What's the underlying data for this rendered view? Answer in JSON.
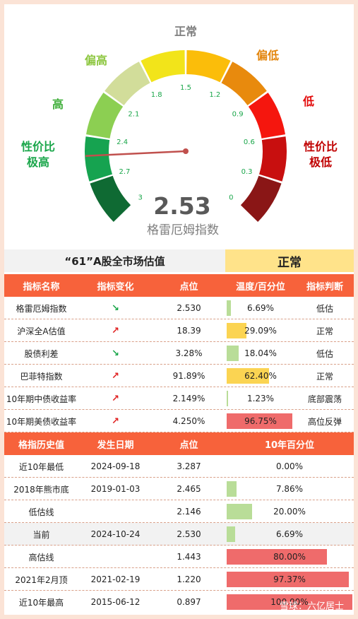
{
  "chart_data": {
    "type": "gauge",
    "value": 2.53,
    "value_label": "2.53",
    "name": "格雷厄姆指数",
    "range": [
      3,
      0
    ],
    "ticks": [
      "3",
      "2.7",
      "2.4",
      "2.1",
      "1.8",
      "1.5",
      "1.2",
      "0.9",
      "0.6",
      "0.3",
      "0"
    ],
    "zone_labels": [
      {
        "text": "性价比\n极高",
        "color": "#1aa64a"
      },
      {
        "text": "高",
        "color": "#3fae3a"
      },
      {
        "text": "偏高",
        "color": "#8cc63e"
      },
      {
        "text": "正常",
        "color": "#7f7f7f"
      },
      {
        "text": "偏低",
        "color": "#e3860e"
      },
      {
        "text": "低",
        "color": "#e30b0b"
      },
      {
        "text": "性价比\n极低",
        "color": "#c00000"
      }
    ],
    "segment_colors": [
      "#0f6a33",
      "#16a350",
      "#8ccf52",
      "#d2dd9a",
      "#f2e41a",
      "#fbbd0a",
      "#e88a0d",
      "#f5160e",
      "#c80f0f",
      "#8a1616"
    ]
  },
  "market": {
    "title": "“61”A股全市场估值",
    "status": "正常"
  },
  "table1": {
    "headers": [
      "指标名称",
      "指标变化",
      "点位",
      "温度/百分位",
      "指标判断"
    ],
    "rows": [
      {
        "name": "格雷厄姆指数",
        "change": "↘",
        "dir": "down",
        "value": "2.530",
        "pct": 6.69,
        "pct_label": "6.69%",
        "judge": "低估",
        "color": "#b9dd98"
      },
      {
        "name": "沪深全A估值",
        "change": "↗",
        "dir": "up",
        "value": "18.39",
        "pct": 29.09,
        "pct_label": "29.09%",
        "judge": "正常",
        "color": "#fbd452"
      },
      {
        "name": "股债利差",
        "change": "↘",
        "dir": "down",
        "value": "3.28%",
        "pct": 18.04,
        "pct_label": "18.04%",
        "judge": "低估",
        "color": "#b9dd98"
      },
      {
        "name": "巴菲特指数",
        "change": "↗",
        "dir": "up",
        "value": "91.89%",
        "pct": 62.4,
        "pct_label": "62.40%",
        "judge": "正常",
        "color": "#fbd452"
      },
      {
        "name": "10年期中债收益率",
        "change": "↗",
        "dir": "up",
        "value": "2.149%",
        "pct": 1.23,
        "pct_label": "1.23%",
        "judge": "底部震荡",
        "color": "#b9dd98"
      },
      {
        "name": "10年期美债收益率",
        "change": "↗",
        "dir": "up",
        "value": "4.250%",
        "pct": 96.75,
        "pct_label": "96.75%",
        "judge": "高位反弹",
        "color": "#ef6b6b"
      }
    ]
  },
  "table2": {
    "headers": [
      "格指历史值",
      "发生日期",
      "点位",
      "10年百分位"
    ],
    "rows": [
      {
        "name": "近10年最低",
        "date": "2024-09-18",
        "value": "3.287",
        "pct": 0,
        "pct_label": "0.00%",
        "color": "#b9dd98"
      },
      {
        "name": "2018年熊市底",
        "date": "2019-01-03",
        "value": "2.465",
        "pct": 7.86,
        "pct_label": "7.86%",
        "color": "#b9dd98"
      },
      {
        "name": "低估线",
        "date": "",
        "value": "2.146",
        "pct": 20,
        "pct_label": "20.00%",
        "color": "#b9dd98"
      },
      {
        "name": "当前",
        "date": "2024-10-24",
        "value": "2.530",
        "pct": 6.69,
        "pct_label": "6.69%",
        "color": "#b9dd98"
      },
      {
        "name": "高估线",
        "date": "",
        "value": "1.443",
        "pct": 80,
        "pct_label": "80.00%",
        "color": "#ef6b6b"
      },
      {
        "name": "2021年2月顶",
        "date": "2021-02-19",
        "value": "1.220",
        "pct": 97.37,
        "pct_label": "97.37%",
        "color": "#ef6b6b"
      },
      {
        "name": "近10年最高",
        "date": "2015-06-12",
        "value": "0.897",
        "pct": 100,
        "pct_label": "100.00%",
        "color": "#ef6b6b"
      }
    ]
  },
  "watermark": "雪球：六亿居士"
}
